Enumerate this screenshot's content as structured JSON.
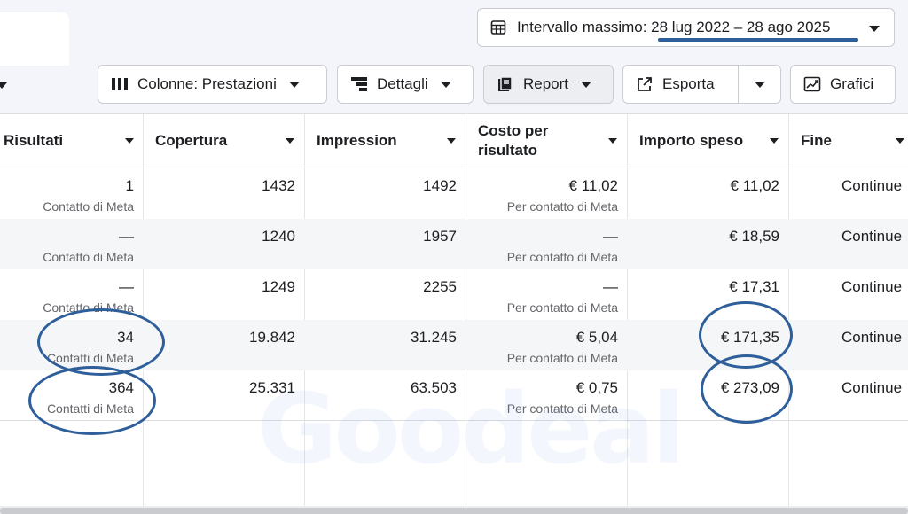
{
  "date_range": {
    "label": "Intervallo massimo",
    "range": "28 lug 2022 – 28 ago 2025"
  },
  "toolbar": {
    "columns_label": "Colonne: Prestazioni",
    "details_label": "Dettagli",
    "report_label": "Report",
    "export_label": "Esporta",
    "charts_label": "Grafici"
  },
  "watermark": "Goodeal",
  "table": {
    "headers": {
      "results": "Risultati",
      "reach": "Copertura",
      "impressions": "Impression",
      "cost_per_result": "Costo per risultato",
      "amount_spent": "Importo speso",
      "end": "Fine"
    },
    "rows": [
      {
        "results": "1",
        "results_sub": "Contatto di Meta",
        "reach": "1432",
        "impressions": "1492",
        "cost": "€ 11,02",
        "cost_sub": "Per contatto di Meta",
        "spent": "€ 11,02",
        "end": "Continue"
      },
      {
        "results": "—",
        "results_sub": "Contatto di Meta",
        "reach": "1240",
        "impressions": "1957",
        "cost": "—",
        "cost_sub": "Per contatto di Meta",
        "spent": "€ 18,59",
        "end": "Continue"
      },
      {
        "results": "—",
        "results_sub": "Contatto di Meta",
        "reach": "1249",
        "impressions": "2255",
        "cost": "—",
        "cost_sub": "Per contatto di Meta",
        "spent": "€ 17,31",
        "end": "Continue"
      },
      {
        "results": "34",
        "results_sub": "Contatti di Meta",
        "reach": "19.842",
        "impressions": "31.245",
        "cost": "€ 5,04",
        "cost_sub": "Per contatto di Meta",
        "spent": "€ 171,35",
        "end": "Continue"
      },
      {
        "results": "364",
        "results_sub": "Contatti di Meta",
        "reach": "25.331",
        "impressions": "63.503",
        "cost": "€ 0,75",
        "cost_sub": "Per contatto di Meta",
        "spent": "€ 273,09",
        "end": "Continue"
      }
    ]
  }
}
